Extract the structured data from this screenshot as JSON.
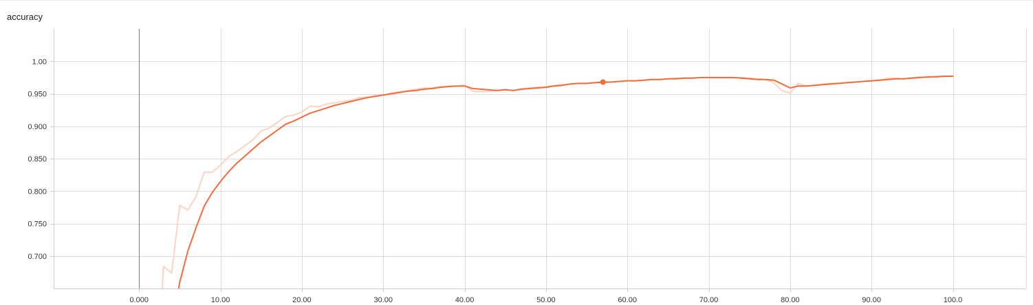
{
  "chart_data": {
    "type": "line",
    "title": "accuracy",
    "xlabel": "",
    "ylabel": "",
    "xlim": [
      -10.5,
      109
    ],
    "ylim": [
      0.65,
      1.05
    ],
    "x_ticks": [
      0,
      10,
      20,
      30,
      40,
      50,
      60,
      70,
      80,
      90,
      100
    ],
    "x_tick_labels": [
      "0.000",
      "10.00",
      "20.00",
      "30.00",
      "40.00",
      "50.00",
      "60.00",
      "70.00",
      "80.00",
      "90.00",
      "100.0"
    ],
    "y_ticks": [
      0.7,
      0.75,
      0.8,
      0.85,
      0.9,
      0.95,
      1.0
    ],
    "y_tick_labels": [
      "0.700",
      "0.750",
      "0.800",
      "0.850",
      "0.900",
      "0.950",
      "1.00"
    ],
    "grid": true,
    "colors": {
      "line": "#f26b3a",
      "raw": "#fdd3c3",
      "grid": "#dddddd",
      "zero_line": "#888888"
    },
    "series": [
      {
        "name": "",
        "role": "raw",
        "x": [
          3,
          4,
          5,
          6,
          7,
          8,
          9,
          10,
          11,
          12,
          13,
          14,
          15,
          16,
          17,
          18,
          19,
          20,
          21,
          22,
          23,
          24,
          25,
          26,
          27,
          28,
          29,
          30,
          31,
          32,
          33,
          34,
          35,
          36,
          37,
          38,
          39,
          40,
          41,
          42,
          43,
          44,
          45,
          46,
          47,
          48,
          49,
          50,
          51,
          52,
          53,
          54,
          55,
          56,
          57,
          58,
          59,
          60,
          61,
          62,
          63,
          64,
          65,
          66,
          67,
          68,
          69,
          70,
          71,
          72,
          73,
          74,
          75,
          76,
          77,
          78,
          79,
          80,
          81,
          82,
          83,
          84,
          85,
          86,
          87,
          88,
          89,
          90,
          91,
          92,
          93,
          94,
          95,
          96,
          97,
          98,
          99,
          100
        ],
        "y": [
          0.684,
          0.674,
          0.778,
          0.771,
          0.792,
          0.829,
          0.829,
          0.84,
          0.853,
          0.861,
          0.87,
          0.879,
          0.893,
          0.897,
          0.906,
          0.915,
          0.917,
          0.922,
          0.931,
          0.93,
          0.934,
          0.936,
          0.938,
          0.94,
          0.944,
          0.945,
          0.947,
          0.948,
          0.951,
          0.953,
          0.955,
          0.957,
          0.959,
          0.959,
          0.961,
          0.962,
          0.962,
          0.963,
          0.954,
          0.953,
          0.954,
          0.955,
          0.957,
          0.955,
          0.958,
          0.959,
          0.96,
          0.961,
          0.963,
          0.964,
          0.965,
          0.966,
          0.966,
          0.967,
          0.967,
          0.968,
          0.969,
          0.97,
          0.97,
          0.971,
          0.972,
          0.972,
          0.973,
          0.974,
          0.974,
          0.974,
          0.975,
          0.975,
          0.975,
          0.975,
          0.975,
          0.975,
          0.974,
          0.973,
          0.972,
          0.967,
          0.955,
          0.951,
          0.966,
          0.962,
          0.963,
          0.965,
          0.966,
          0.966,
          0.967,
          0.968,
          0.969,
          0.97,
          0.971,
          0.974,
          0.974,
          0.973,
          0.975,
          0.976,
          0.975,
          0.977,
          0.977,
          0.977
        ]
      },
      {
        "name": "",
        "role": "smoothed",
        "x": [
          5,
          6,
          7,
          8,
          9,
          10,
          11,
          12,
          13,
          14,
          15,
          16,
          17,
          18,
          19,
          20,
          21,
          22,
          23,
          24,
          25,
          26,
          27,
          28,
          29,
          30,
          31,
          32,
          33,
          34,
          35,
          36,
          37,
          38,
          39,
          40,
          41,
          42,
          43,
          44,
          45,
          46,
          47,
          48,
          49,
          50,
          51,
          52,
          53,
          54,
          55,
          56,
          57,
          58,
          59,
          60,
          61,
          62,
          63,
          64,
          65,
          66,
          67,
          68,
          69,
          70,
          71,
          72,
          73,
          74,
          75,
          76,
          77,
          78,
          79,
          80,
          81,
          82,
          83,
          84,
          85,
          86,
          87,
          88,
          89,
          90,
          91,
          92,
          93,
          94,
          95,
          96,
          97,
          98,
          99,
          100
        ],
        "y": [
          0.66,
          0.708,
          0.744,
          0.777,
          0.798,
          0.815,
          0.83,
          0.843,
          0.854,
          0.865,
          0.876,
          0.885,
          0.894,
          0.903,
          0.908,
          0.914,
          0.92,
          0.924,
          0.928,
          0.932,
          0.935,
          0.938,
          0.941,
          0.944,
          0.946,
          0.948,
          0.95,
          0.952,
          0.954,
          0.955,
          0.957,
          0.958,
          0.96,
          0.961,
          0.962,
          0.962,
          0.958,
          0.957,
          0.956,
          0.955,
          0.956,
          0.955,
          0.957,
          0.958,
          0.959,
          0.96,
          0.962,
          0.963,
          0.965,
          0.966,
          0.966,
          0.967,
          0.968,
          0.968,
          0.969,
          0.97,
          0.97,
          0.971,
          0.972,
          0.972,
          0.973,
          0.973,
          0.974,
          0.974,
          0.975,
          0.975,
          0.975,
          0.975,
          0.975,
          0.974,
          0.973,
          0.972,
          0.972,
          0.971,
          0.965,
          0.959,
          0.962,
          0.962,
          0.963,
          0.964,
          0.965,
          0.966,
          0.967,
          0.968,
          0.969,
          0.97,
          0.971,
          0.972,
          0.973,
          0.973,
          0.974,
          0.975,
          0.976,
          0.976,
          0.977,
          0.977
        ]
      }
    ],
    "highlight_point": {
      "x": 57,
      "y": 0.968
    }
  }
}
